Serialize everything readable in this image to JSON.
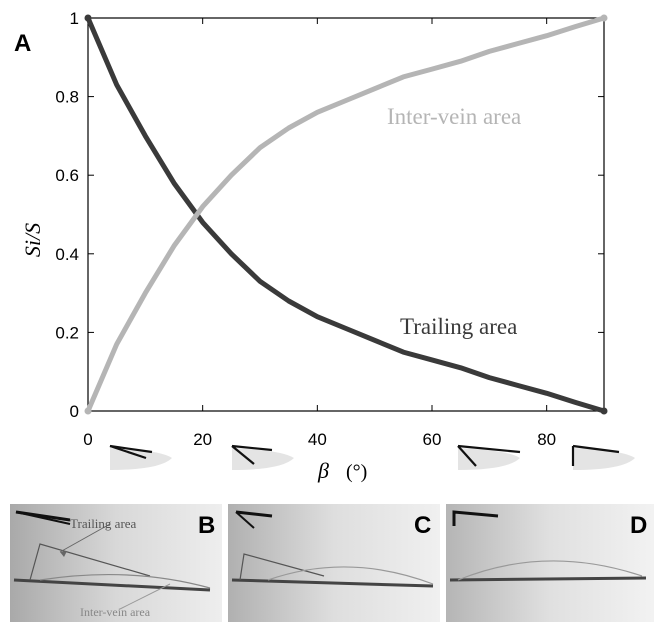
{
  "figure": {
    "panel_a_label": "A",
    "panel_b_label": "B",
    "panel_c_label": "C",
    "panel_d_label": "D",
    "photo_b_trailing_label": "Trailing area",
    "photo_b_intervein_label": "Inter-vein area"
  },
  "chart_data": {
    "type": "line",
    "xlabel_symbol": "β",
    "xlabel_unit": "(°)",
    "ylabel": "Si/S",
    "xlim": [
      0,
      90
    ],
    "ylim": [
      0,
      1
    ],
    "x_ticks": [
      0,
      20,
      40,
      60,
      80
    ],
    "y_ticks": [
      0,
      0.2,
      0.4,
      0.6,
      0.8,
      1
    ],
    "y_tick_labels": [
      "0",
      "0.2",
      "0.4",
      "0.6",
      "0.8",
      "1"
    ],
    "grid": false,
    "series": [
      {
        "name": "Trailing area",
        "color": "#3a3a3a",
        "x": [
          0,
          5,
          10,
          15,
          20,
          25,
          30,
          35,
          40,
          45,
          50,
          55,
          60,
          65,
          70,
          75,
          80,
          85,
          90
        ],
        "y": [
          1.0,
          0.83,
          0.7,
          0.58,
          0.48,
          0.4,
          0.33,
          0.28,
          0.24,
          0.21,
          0.18,
          0.15,
          0.13,
          0.11,
          0.085,
          0.065,
          0.045,
          0.022,
          0.0
        ]
      },
      {
        "name": "Inter-vein area",
        "color": "#b5b5b5",
        "x": [
          0,
          5,
          10,
          15,
          20,
          25,
          30,
          35,
          40,
          45,
          50,
          55,
          60,
          65,
          70,
          75,
          80,
          85,
          90
        ],
        "y": [
          0.0,
          0.17,
          0.3,
          0.42,
          0.52,
          0.6,
          0.67,
          0.72,
          0.76,
          0.79,
          0.82,
          0.85,
          0.87,
          0.89,
          0.915,
          0.935,
          0.955,
          0.978,
          1.0
        ]
      }
    ]
  }
}
